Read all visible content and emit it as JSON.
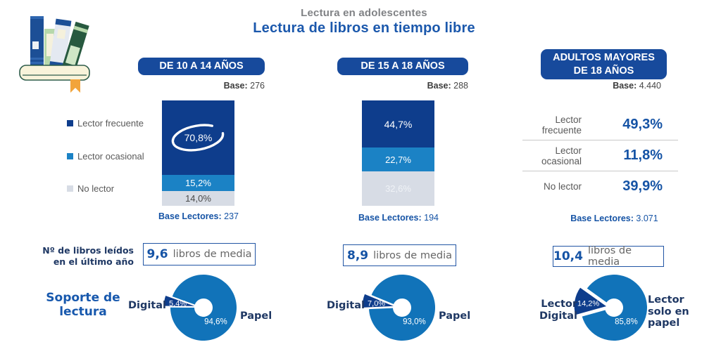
{
  "header": {
    "subtitle": "Lectura en adolescentes",
    "title": "Lectura de libros en tiempo libre"
  },
  "palette": {
    "pill_blue": "#174a9c",
    "dark_blue": "#0e3d8c",
    "medium_blue": "#1b82c5",
    "light_gray": "#d7dce5",
    "donut_blue": "#1173b9",
    "accent_blue": "#1553a5",
    "navy_text": "#1f3864",
    "title_blue": "#1b58ac",
    "subtitle_gray": "#808285",
    "label_gray": "#595959"
  },
  "legend": {
    "items": [
      {
        "label": "Lector frecuente",
        "color": "#0e3d8c"
      },
      {
        "label": "Lector ocasional",
        "color": "#1b82c5"
      },
      {
        "label": "No lector",
        "color": "#d7dce5"
      }
    ]
  },
  "left_labels": {
    "books_line1": "Nº de libros leídos",
    "books_line2": "en el último año",
    "support_line1": "Soporte de",
    "support_line2": "lectura"
  },
  "columns": [
    {
      "title": "DE 10 A 14 AÑOS",
      "base": {
        "label": "Base:",
        "value": "276"
      },
      "base_lectores": {
        "label": "Base Lectores:",
        "value": "237"
      },
      "avg": {
        "value": "9,6",
        "label": "libros de media"
      },
      "bar_labels": [
        "70,8%",
        "15,2%",
        "14,0%"
      ],
      "bar_label_colors": [
        "#ffffff",
        "#ffffff",
        "#4a4a4a"
      ],
      "donut_labels": {
        "slice": "5,4%",
        "main": "94,6%",
        "left": "Digital",
        "right": "Papel"
      }
    },
    {
      "title": "DE 15 A 18 AÑOS",
      "base": {
        "label": "Base:",
        "value": "288"
      },
      "base_lectores": {
        "label": "Base Lectores:",
        "value": "194"
      },
      "avg": {
        "value": "8,9",
        "label": "libros de media"
      },
      "bar_labels": [
        "44,7%",
        "22,7%",
        "32,6%"
      ],
      "bar_label_colors": [
        "#ffffff",
        "#ffffff",
        "#eff2f6"
      ],
      "donut_labels": {
        "slice": "7,0%",
        "main": "93,0%",
        "left": "Digital",
        "right": "Papel"
      }
    },
    {
      "title": "ADULTOS MAYORES DE 18 AÑOS",
      "base": {
        "label": "Base:",
        "value": "4.440"
      },
      "base_lectores": {
        "label": "Base Lectores:",
        "value": "3.071"
      },
      "avg": {
        "value": "10,4",
        "label": "libros de media"
      },
      "stats": [
        {
          "label": "Lector frecuente",
          "value": "49,3%"
        },
        {
          "label": "Lector ocasional",
          "value": "11,8%"
        },
        {
          "label": "No lector",
          "value": "39,9%"
        }
      ],
      "donut_labels": {
        "slice": "14,2%",
        "main": "85,8%",
        "left_lines": [
          "Lector",
          "Digital"
        ],
        "right_lines": [
          "Lector",
          "solo en",
          "papel"
        ]
      }
    }
  ],
  "chart_data": [
    {
      "id": "bar_10_14",
      "type": "bar",
      "stacked": true,
      "title": "DE 10 A 14 AÑOS — lectura de libros en tiempo libre (%)",
      "categories": [
        "Lector frecuente",
        "Lector ocasional",
        "No lector"
      ],
      "values": [
        70.8,
        15.2,
        14.0
      ],
      "labels": [
        "70,8%",
        "15,2%",
        "14,0%"
      ],
      "base": 276,
      "base_lectores": 237
    },
    {
      "id": "bar_15_18",
      "type": "bar",
      "stacked": true,
      "title": "DE 15 A 18 AÑOS — lectura de libros en tiempo libre (%)",
      "categories": [
        "Lector frecuente",
        "Lector ocasional",
        "No lector"
      ],
      "values": [
        44.7,
        22.7,
        32.6
      ],
      "labels": [
        "44,7%",
        "22,7%",
        "32,6%"
      ],
      "base": 288,
      "base_lectores": 194
    },
    {
      "id": "stats_adultos",
      "type": "table",
      "title": "ADULTOS MAYORES DE 18 AÑOS — lectura de libros en tiempo libre (%)",
      "categories": [
        "Lector frecuente",
        "Lector ocasional",
        "No lector"
      ],
      "values": [
        49.3,
        11.8,
        39.9
      ],
      "labels": [
        "49,3%",
        "11,8%",
        "39,9%"
      ],
      "base": 4440,
      "base_lectores": 3071
    },
    {
      "id": "donut_10_14",
      "type": "pie",
      "title": "Soporte de lectura — de 10 a 14 años (%)",
      "categories": [
        "Digital",
        "Papel"
      ],
      "values": [
        5.4,
        94.6
      ],
      "labels": [
        "5,4%",
        "94,6%"
      ],
      "avg_books": 9.6
    },
    {
      "id": "donut_15_18",
      "type": "pie",
      "title": "Soporte de lectura — de 15 a 18 años (%)",
      "categories": [
        "Digital",
        "Papel"
      ],
      "values": [
        7.0,
        93.0
      ],
      "labels": [
        "7,0%",
        "93,0%"
      ],
      "avg_books": 8.9
    },
    {
      "id": "donut_adultos",
      "type": "pie",
      "title": "Soporte de lectura — adultos mayores de 18 años (%)",
      "categories": [
        "Lector Digital",
        "Lector solo en papel"
      ],
      "values": [
        14.2,
        85.8
      ],
      "labels": [
        "14,2%",
        "85,8%"
      ],
      "avg_books": 10.4
    }
  ]
}
